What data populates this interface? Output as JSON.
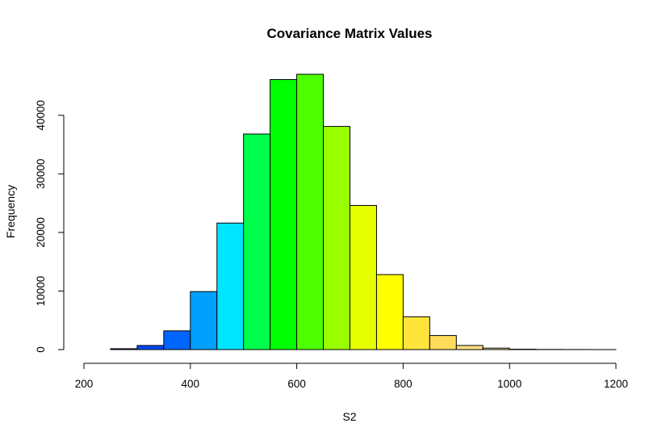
{
  "chart_data": {
    "type": "bar",
    "subtype": "histogram",
    "title": "Covariance Matrix Values",
    "xlabel": "S2",
    "ylabel": "Frequency",
    "xlim": [
      200,
      1200
    ],
    "ylim": [
      0,
      47000
    ],
    "x_ticks": [
      200,
      400,
      600,
      800,
      1000,
      1200
    ],
    "y_ticks": [
      0,
      10000,
      20000,
      30000,
      40000
    ],
    "bins": [
      {
        "start": 250,
        "end": 300,
        "value": 150,
        "color": "#0030FF"
      },
      {
        "start": 300,
        "end": 350,
        "value": 700,
        "color": "#0048FF"
      },
      {
        "start": 350,
        "end": 400,
        "value": 3200,
        "color": "#0066FF"
      },
      {
        "start": 400,
        "end": 450,
        "value": 9900,
        "color": "#00A0FF"
      },
      {
        "start": 450,
        "end": 500,
        "value": 21600,
        "color": "#00E5FF"
      },
      {
        "start": 500,
        "end": 550,
        "value": 36800,
        "color": "#00FF4D"
      },
      {
        "start": 550,
        "end": 600,
        "value": 46100,
        "color": "#00FF00"
      },
      {
        "start": 600,
        "end": 650,
        "value": 47000,
        "color": "#4DFF00"
      },
      {
        "start": 650,
        "end": 700,
        "value": 38100,
        "color": "#99FF00"
      },
      {
        "start": 700,
        "end": 750,
        "value": 24600,
        "color": "#E6FF00"
      },
      {
        "start": 750,
        "end": 800,
        "value": 12800,
        "color": "#FFFF00"
      },
      {
        "start": 800,
        "end": 850,
        "value": 5600,
        "color": "#FFE53B"
      },
      {
        "start": 850,
        "end": 900,
        "value": 2400,
        "color": "#FFDB5C"
      },
      {
        "start": 900,
        "end": 950,
        "value": 700,
        "color": "#FFDF80"
      },
      {
        "start": 950,
        "end": 1000,
        "value": 250,
        "color": "#FFE5A0"
      },
      {
        "start": 1000,
        "end": 1050,
        "value": 60,
        "color": "#FFECC0"
      },
      {
        "start": 1050,
        "end": 1100,
        "value": 20,
        "color": "#FFF2D9"
      },
      {
        "start": 1100,
        "end": 1150,
        "value": 10,
        "color": "#FFF8EC"
      },
      {
        "start": 1150,
        "end": 1200,
        "value": 5,
        "color": "#FFFFFF"
      }
    ]
  }
}
